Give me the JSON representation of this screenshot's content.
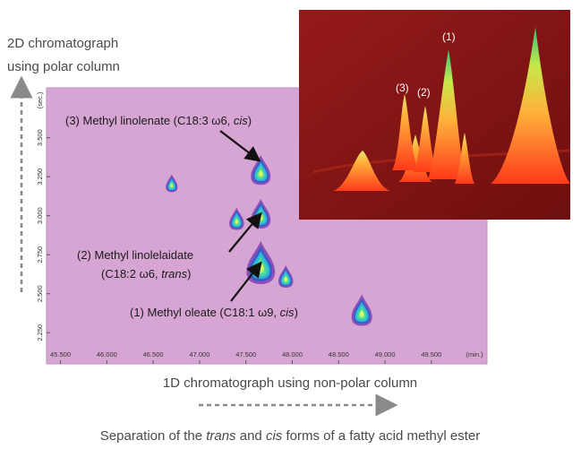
{
  "chart_data": {
    "type": "contour",
    "title_2d_axis": [
      "2D chromatograph",
      "using polar column"
    ],
    "xlabel": "1D chromatograph using non-polar column",
    "x_unit": "(min.)",
    "y_unit": "(sec.)",
    "xticks": [
      "45.500",
      "46.000",
      "46.500",
      "47.000",
      "47.500",
      "48.000",
      "48.500",
      "49.000",
      "49.500"
    ],
    "yticks": [
      "2.250",
      "2.500",
      "2.750",
      "3.000",
      "3.250",
      "3.500"
    ],
    "xlim": [
      45.35,
      50.1
    ],
    "ylim": [
      2.05,
      3.82
    ],
    "peaks": [
      {
        "x": 46.7,
        "y": 3.2,
        "size": 0.6
      },
      {
        "x": 47.4,
        "y": 2.97,
        "size": 0.75
      },
      {
        "x": 47.66,
        "y": 3.28,
        "size": 1.0
      },
      {
        "x": 47.66,
        "y": 3.0,
        "size": 1.0
      },
      {
        "x": 47.66,
        "y": 2.68,
        "size": 1.45
      },
      {
        "x": 47.93,
        "y": 2.6,
        "size": 0.75
      },
      {
        "x": 48.75,
        "y": 2.38,
        "size": 1.05
      }
    ],
    "annotations": [
      {
        "lines": [
          [
            {
              "t": "(3) Methyl linolenate (C18:3 ω6, "
            },
            {
              "t": "cis",
              "i": true
            },
            {
              "t": ")"
            }
          ]
        ],
        "peak": 2
      },
      {
        "lines": [
          [
            {
              "t": "(2) Methyl linolelaidate"
            }
          ],
          [
            {
              "t": "(C18:2 ω6, "
            },
            {
              "t": "trans",
              "i": true
            },
            {
              "t": ")"
            }
          ]
        ],
        "peak": 3
      },
      {
        "lines": [
          [
            {
              "t": "(1) Methyl oleate (C18:1 ω9, "
            },
            {
              "t": "cis",
              "i": true
            },
            {
              "t": ")"
            }
          ]
        ],
        "peak": 4
      }
    ],
    "inset_3d_labels": [
      "(1)",
      "(2)",
      "(3)"
    ],
    "caption": [
      {
        "t": "Separation of the "
      },
      {
        "t": "trans",
        "i": true
      },
      {
        "t": " and "
      },
      {
        "t": "cis",
        "i": true
      },
      {
        "t": " forms of a fatty acid methyl ester"
      }
    ],
    "colors": {
      "background": "#d7a5d3",
      "inset_background": "#7a1414",
      "arrows": "#8a8a8a"
    }
  }
}
